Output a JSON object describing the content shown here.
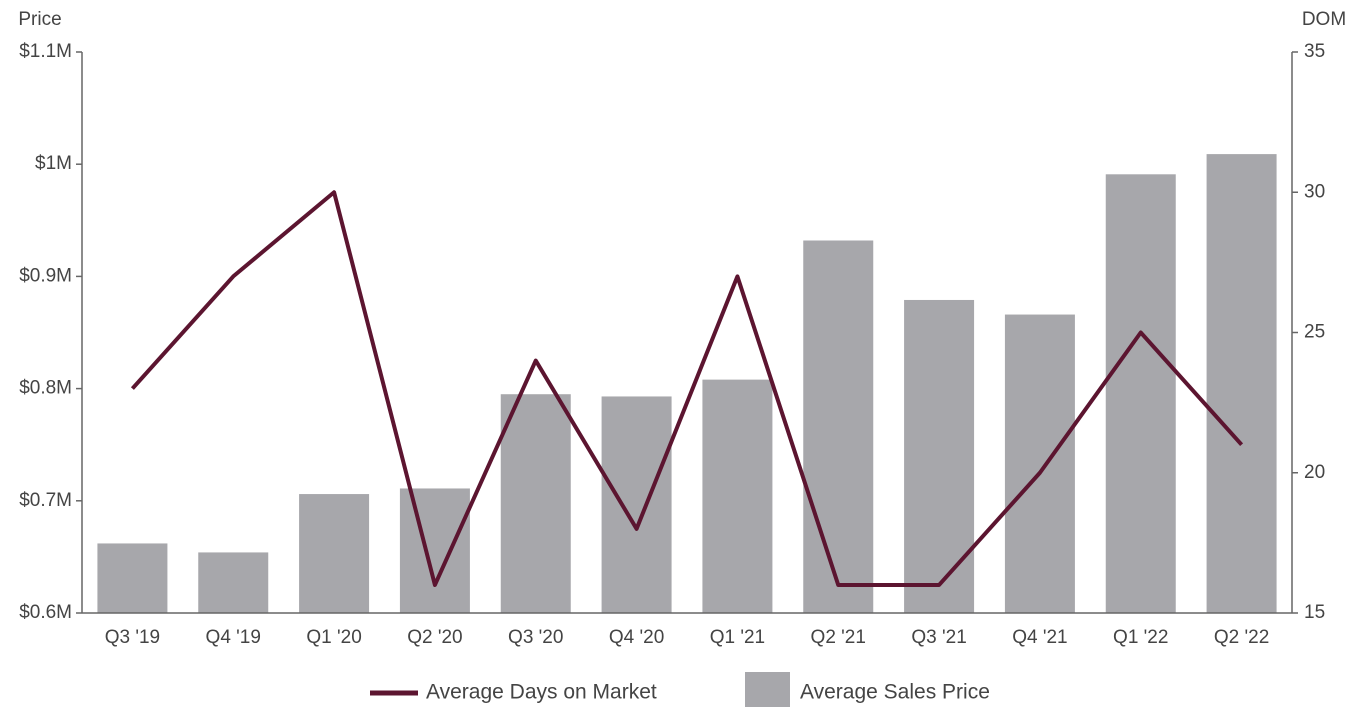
{
  "chart_data": {
    "type": "bar-line",
    "y_label": "Price",
    "y2_label": "DOM",
    "categories": [
      "Q3 '19",
      "Q4 '19",
      "Q1 '20",
      "Q2 '20",
      "Q3 '20",
      "Q4 '20",
      "Q1 '21",
      "Q2 '21",
      "Q3 '21",
      "Q4 '21",
      "Q1 '22",
      "Q2 '22"
    ],
    "series": [
      {
        "name": "Average Days on Market",
        "type": "line",
        "axis": "y2",
        "color": "#5c1530",
        "values": [
          23,
          27,
          30,
          16,
          24,
          18,
          27,
          16,
          16,
          20,
          25,
          21
        ]
      },
      {
        "name": "Average Sales Price",
        "type": "bar",
        "axis": "y",
        "color": "#a7a7ab",
        "values": [
          662000,
          654000,
          706000,
          711000,
          795000,
          793000,
          808000,
          932000,
          879000,
          866000,
          991000,
          1009000
        ]
      }
    ],
    "ylim": [
      600000,
      1100000
    ],
    "yticks": [
      {
        "value": 600000,
        "label": "$0.6M"
      },
      {
        "value": 700000,
        "label": "$0.7M"
      },
      {
        "value": 800000,
        "label": "$0.8M"
      },
      {
        "value": 900000,
        "label": "$0.9M"
      },
      {
        "value": 1000000,
        "label": "$1M"
      },
      {
        "value": 1100000,
        "label": "$1.1M"
      }
    ],
    "y2lim": [
      15,
      35
    ],
    "y2ticks": [
      15,
      20,
      25,
      30,
      35
    ],
    "legend": "bottom"
  }
}
